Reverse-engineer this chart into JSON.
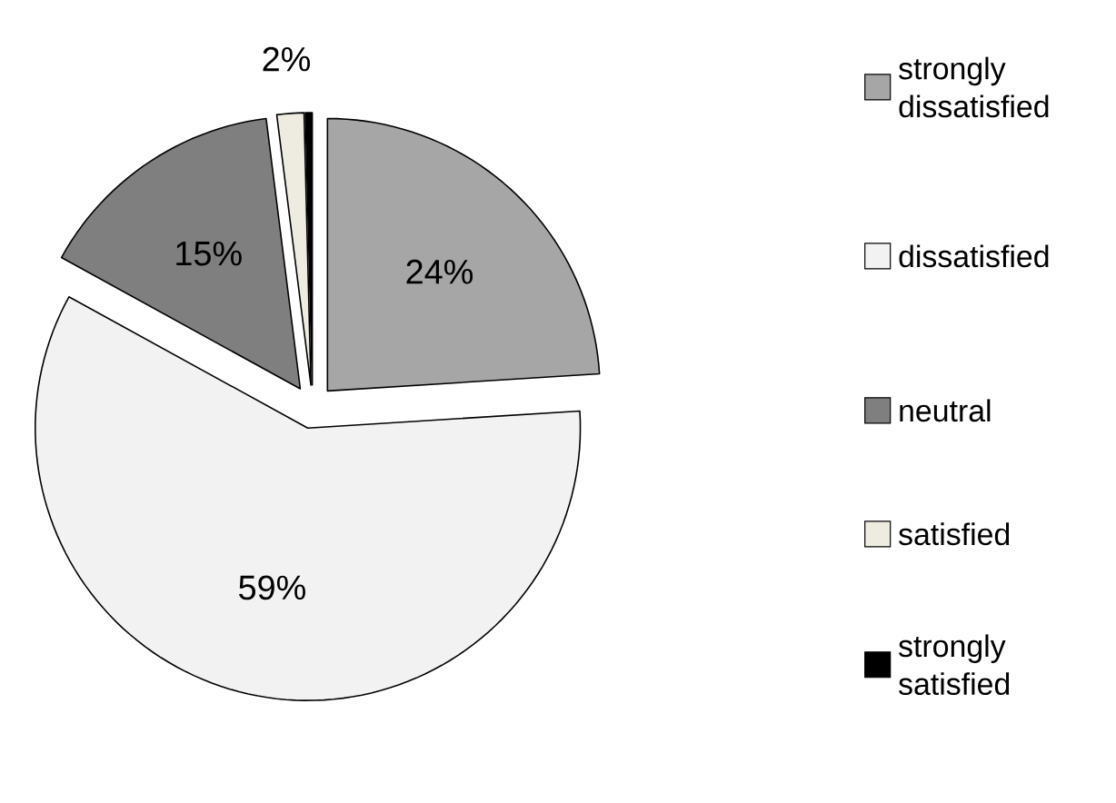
{
  "chart_data": {
    "type": "pie",
    "categories": [
      "strongly dissatisfied",
      "dissatisfied",
      "neutral",
      "satisfied",
      "strongly satisfied"
    ],
    "values": [
      24,
      59,
      15,
      1.6,
      0.4
    ],
    "colors": [
      "#a6a6a6",
      "#f2f2f2",
      "#7f7f7f",
      "#eeece1",
      "#000000"
    ],
    "value_labels": [
      "24%",
      "59%",
      "15%",
      "2%",
      null
    ],
    "legend": "right"
  }
}
